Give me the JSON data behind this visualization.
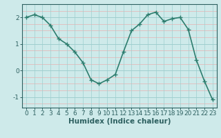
{
  "x": [
    0,
    1,
    2,
    3,
    4,
    5,
    6,
    7,
    8,
    9,
    10,
    11,
    12,
    13,
    14,
    15,
    16,
    17,
    18,
    19,
    20,
    21,
    22,
    23
  ],
  "y": [
    2.0,
    2.1,
    2.0,
    1.7,
    1.2,
    1.0,
    0.7,
    0.3,
    -0.35,
    -0.5,
    -0.35,
    -0.15,
    0.7,
    1.5,
    1.75,
    2.1,
    2.2,
    1.85,
    1.95,
    2.0,
    1.55,
    0.4,
    -0.4,
    -1.1
  ],
  "line_color": "#2d7d6e",
  "marker": "+",
  "bg_color": "#ceeaea",
  "grid_color_vert": "#9ecfcf",
  "grid_color_horiz_minor": "#e8b0b0",
  "grid_color_horiz_major": "#9ecfcf",
  "xlabel": "Humidex (Indice chaleur)",
  "yticks": [
    -1,
    0,
    1,
    2
  ],
  "xticks": [
    0,
    1,
    2,
    3,
    4,
    5,
    6,
    7,
    8,
    9,
    10,
    11,
    12,
    13,
    14,
    15,
    16,
    17,
    18,
    19,
    20,
    21,
    22,
    23
  ],
  "xlabel_fontsize": 7.5,
  "tick_fontsize": 6.5,
  "linewidth": 1.2,
  "markersize": 4,
  "ylim": [
    -1.4,
    2.5
  ],
  "xlim": [
    -0.5,
    23.5
  ]
}
